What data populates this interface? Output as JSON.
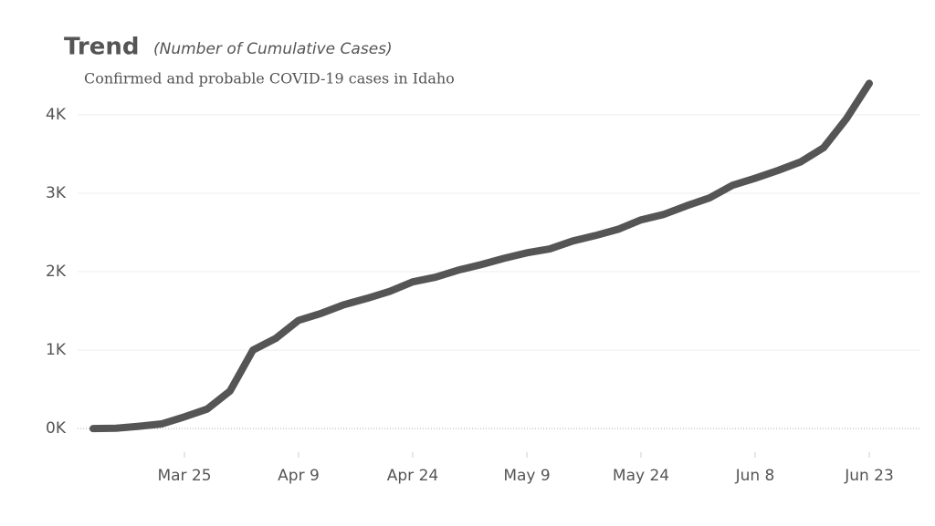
{
  "chart_data": {
    "type": "line",
    "title": "Trend",
    "subtitle": "(Number of Cumulative Cases)",
    "annotation": "Confirmed and probable COVID-19 cases in Idaho",
    "categories": [
      null,
      null,
      null,
      null,
      "Mar 25",
      null,
      null,
      null,
      null,
      "Apr 9",
      null,
      null,
      null,
      null,
      "Apr 24",
      null,
      null,
      null,
      null,
      "May 9",
      null,
      null,
      null,
      null,
      "May 24",
      null,
      null,
      null,
      null,
      "Jun 8",
      null,
      null,
      null,
      null,
      "Jun 23"
    ],
    "series": [
      {
        "color": "#555555",
        "values": [
          0,
          5,
          30,
          60,
          150,
          250,
          480,
          1000,
          1150,
          1380,
          1470,
          1580,
          1660,
          1750,
          1870,
          1930,
          2020,
          2090,
          2170,
          2240,
          2290,
          2390,
          2460,
          2540,
          2660,
          2730,
          2840,
          2940,
          3100,
          3190,
          3290,
          3400,
          3580,
          3950,
          4400
        ]
      }
    ],
    "ylim": [
      -300,
      4800
    ],
    "yticks": [
      {
        "value": 0,
        "label": "0K"
      },
      {
        "value": 1000,
        "label": "1K"
      },
      {
        "value": 2000,
        "label": "2K"
      },
      {
        "value": 3000,
        "label": "3K"
      },
      {
        "value": 4000,
        "label": "4K"
      }
    ],
    "grid": true
  }
}
